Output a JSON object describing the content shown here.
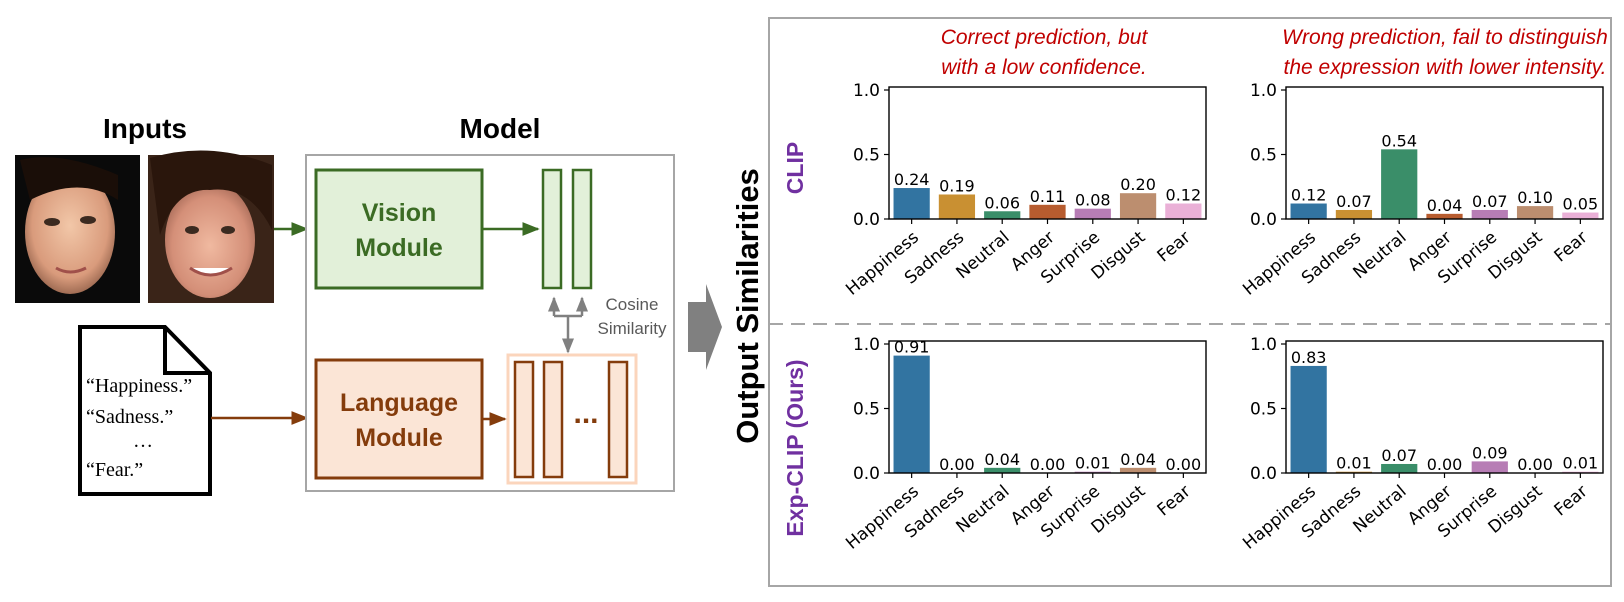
{
  "figure": {
    "inputs_title": "Inputs",
    "model_title": "Model",
    "output_title": "Output Similarities",
    "vision_module": [
      "Vision",
      "Module"
    ],
    "language_module": [
      "Language",
      "Module"
    ],
    "cosine_similarity": [
      "Cosine",
      "Similarity"
    ],
    "ellipsis": "...",
    "prompts": [
      "“Happiness.”",
      "“Sadness.”",
      "…",
      "“Fear.”"
    ],
    "row_labels": [
      "CLIP",
      "Exp-CLIP (Ours)"
    ],
    "annotations": [
      [
        "Correct prediction, but",
        "with a low confidence."
      ],
      [
        "Wrong prediction, fail to distinguish",
        "the expression with lower intensity."
      ]
    ]
  },
  "colors": {
    "vision_dark": "#3b6b24",
    "vision_fill": "#e2f0d9",
    "language_dark": "#843c0c",
    "language_fill": "#fbe5d6",
    "row_label": "#7030a0",
    "annotation": "#c00000",
    "bars": [
      "#3274a1",
      "#c99032",
      "#3a8e69",
      "#b75c2f",
      "#b77db5",
      "#bc8e6f",
      "#eab0d7"
    ]
  },
  "chart_data": [
    {
      "type": "bar",
      "row": "CLIP",
      "categories": [
        "Happiness",
        "Sadness",
        "Neutral",
        "Anger",
        "Surprise",
        "Disgust",
        "Fear"
      ],
      "values": [
        0.24,
        0.19,
        0.06,
        0.11,
        0.08,
        0.2,
        0.12
      ],
      "value_labels": [
        "0.24",
        "0.19",
        "0.06",
        "0.11",
        "0.08",
        "0.20",
        "0.12"
      ],
      "yticks": [
        "0.0",
        "0.5",
        "1.0"
      ],
      "ylim": [
        0,
        1.0
      ]
    },
    {
      "type": "bar",
      "row": "CLIP",
      "categories": [
        "Happiness",
        "Sadness",
        "Neutral",
        "Anger",
        "Surprise",
        "Disgust",
        "Fear"
      ],
      "values": [
        0.12,
        0.07,
        0.54,
        0.04,
        0.07,
        0.1,
        0.05
      ],
      "value_labels": [
        "0.12",
        "0.07",
        "0.54",
        "0.04",
        "0.07",
        "0.10",
        "0.05"
      ],
      "yticks": [
        "0.0",
        "0.5",
        "1.0"
      ],
      "ylim": [
        0,
        1.0
      ]
    },
    {
      "type": "bar",
      "row": "Exp-CLIP (Ours)",
      "categories": [
        "Happiness",
        "Sadness",
        "Neutral",
        "Anger",
        "Surprise",
        "Disgust",
        "Fear"
      ],
      "values": [
        0.91,
        0.0,
        0.04,
        0.0,
        0.01,
        0.04,
        0.0
      ],
      "value_labels": [
        "0.91",
        "0.00",
        "0.04",
        "0.00",
        "0.01",
        "0.04",
        "0.00"
      ],
      "yticks": [
        "0.0",
        "0.5",
        "1.0"
      ],
      "ylim": [
        0,
        1.0
      ]
    },
    {
      "type": "bar",
      "row": "Exp-CLIP (Ours)",
      "categories": [
        "Happiness",
        "Sadness",
        "Neutral",
        "Anger",
        "Surprise",
        "Disgust",
        "Fear"
      ],
      "values": [
        0.83,
        0.01,
        0.07,
        0.0,
        0.09,
        0.0,
        0.01
      ],
      "value_labels": [
        "0.83",
        "0.01",
        "0.07",
        "0.00",
        "0.09",
        "0.00",
        "0.01"
      ],
      "yticks": [
        "0.0",
        "0.5",
        "1.0"
      ],
      "ylim": [
        0,
        1.0
      ]
    }
  ]
}
